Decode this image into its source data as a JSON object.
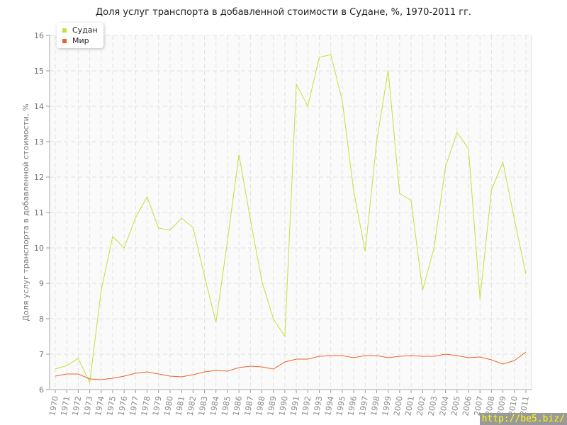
{
  "chart_data": {
    "type": "line",
    "title": "Доля услуг транспорта в добавленной стоимости в Судане, %, 1970-2011 гг.",
    "xlabel": "",
    "ylabel": "Доля услуг транспорта в добавленной стоимости, %",
    "ylim": [
      6,
      16
    ],
    "yticks": [
      6,
      7,
      8,
      9,
      10,
      11,
      12,
      13,
      14,
      15,
      16
    ],
    "grid": true,
    "legend_position": "top-left",
    "x": [
      1970,
      1971,
      1972,
      1973,
      1974,
      1975,
      1976,
      1977,
      1978,
      1979,
      1980,
      1981,
      1982,
      1983,
      1984,
      1985,
      1986,
      1987,
      1988,
      1989,
      1990,
      1991,
      1992,
      1993,
      1994,
      1995,
      1996,
      1997,
      1998,
      1999,
      2000,
      2001,
      2002,
      2003,
      2004,
      2005,
      2006,
      2007,
      2008,
      2009,
      2010,
      2011
    ],
    "series": [
      {
        "name": "Судан",
        "color": "#c4e03a",
        "values": [
          6.58,
          6.68,
          6.88,
          6.2,
          8.8,
          10.32,
          10.0,
          10.86,
          11.44,
          10.56,
          10.5,
          10.84,
          10.58,
          9.2,
          7.9,
          10.2,
          12.64,
          10.8,
          9.06,
          8.0,
          7.5,
          14.62,
          14.0,
          15.38,
          15.46,
          14.16,
          11.6,
          9.9,
          13.0,
          15.02,
          11.54,
          11.34,
          8.8,
          10.0,
          12.3,
          13.26,
          12.8,
          8.56,
          11.64,
          12.42,
          10.8,
          9.26
        ]
      },
      {
        "name": "Мир",
        "color": "#e8642c",
        "values": [
          6.38,
          6.44,
          6.44,
          6.3,
          6.28,
          6.32,
          6.38,
          6.46,
          6.5,
          6.44,
          6.38,
          6.36,
          6.42,
          6.5,
          6.54,
          6.52,
          6.62,
          6.66,
          6.64,
          6.58,
          6.78,
          6.86,
          6.86,
          6.94,
          6.96,
          6.96,
          6.9,
          6.96,
          6.96,
          6.9,
          6.94,
          6.96,
          6.94,
          6.94,
          7.0,
          6.96,
          6.9,
          6.92,
          6.84,
          6.72,
          6.82,
          7.06
        ]
      }
    ]
  },
  "watermark": "http://be5.biz/"
}
